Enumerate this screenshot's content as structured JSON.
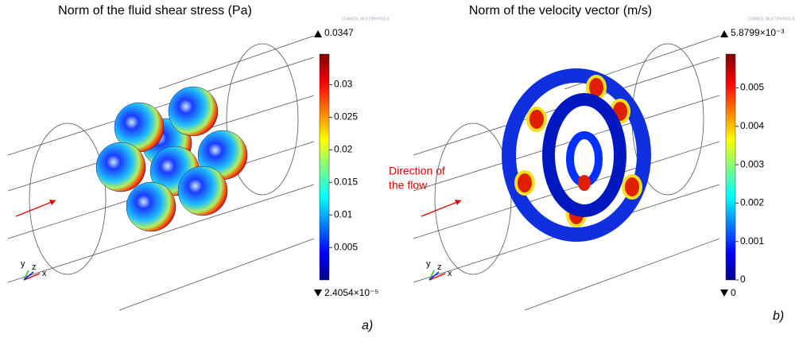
{
  "panels": [
    {
      "title": "Norm of the fluid shear stress (Pa)",
      "max_label": "0.0347",
      "min_label": "2.4054×10⁻⁵",
      "colorbar": {
        "range": [
          2.4054e-05,
          0.0347
        ],
        "ticks": [
          0.005,
          0.01,
          0.015,
          0.02,
          0.025,
          0.03
        ]
      },
      "axes": [
        "y",
        "z",
        "x"
      ],
      "watermark": "COMSOL MULTIPHYSICS",
      "caption": "a)"
    },
    {
      "title": "Norm of the velocity vector (m/s)",
      "max_label": "5.8799×10⁻³",
      "min_label": "0",
      "colorbar": {
        "range": [
          0,
          0.0058799
        ],
        "ticks": [
          0,
          0.001,
          0.002,
          0.003,
          0.004,
          0.005
        ]
      },
      "axes": [
        "y",
        "z",
        "x"
      ],
      "watermark": "COMSOL MULTIPHYSICS",
      "caption": "b)",
      "annotation": [
        "Direction of",
        "the flow"
      ]
    }
  ]
}
